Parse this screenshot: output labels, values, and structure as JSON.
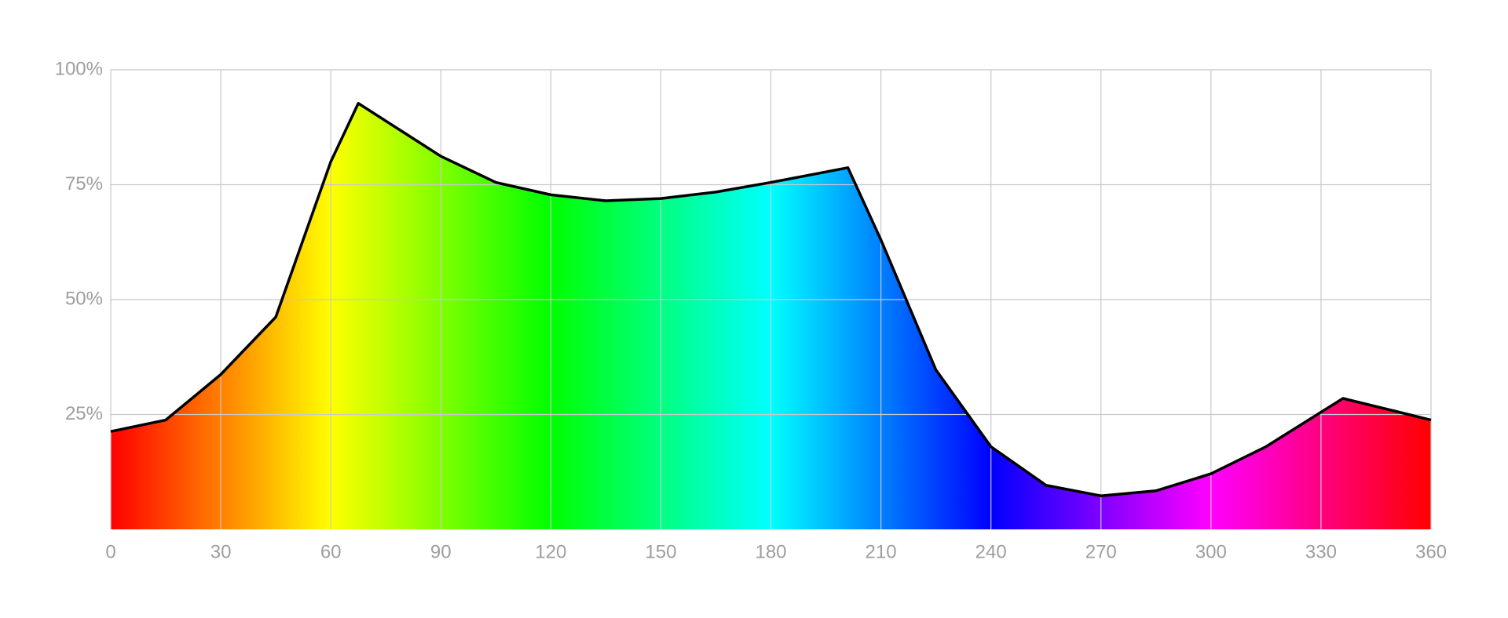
{
  "chart_data": {
    "type": "area",
    "x": [
      0,
      15,
      30,
      45,
      60,
      67.5,
      90,
      105,
      120,
      135,
      150,
      165,
      180,
      201,
      210,
      225,
      240,
      255,
      270,
      285,
      300,
      315,
      336,
      360
    ],
    "values": [
      21.3,
      23.8,
      33.7,
      46.2,
      80,
      92.7,
      81.2,
      75.5,
      72.8,
      71.5,
      72,
      73.4,
      75.5,
      78.7,
      63,
      34.7,
      18,
      9.6,
      7.3,
      8.4,
      12.1,
      18,
      28.5,
      23.8
    ],
    "color": "#000000",
    "fill": "hue",
    "xlim": [
      0,
      360
    ],
    "xticks": [
      0,
      30,
      60,
      90,
      120,
      150,
      180,
      210,
      240,
      270,
      300,
      330,
      360
    ],
    "ylim": [
      0,
      100
    ],
    "yticks": [
      {
        "value": 25,
        "label": "25%"
      },
      {
        "value": 50,
        "label": "50%"
      },
      {
        "value": 75,
        "label": "75%"
      },
      {
        "value": 100,
        "label": "100%"
      }
    ],
    "grid": true
  }
}
